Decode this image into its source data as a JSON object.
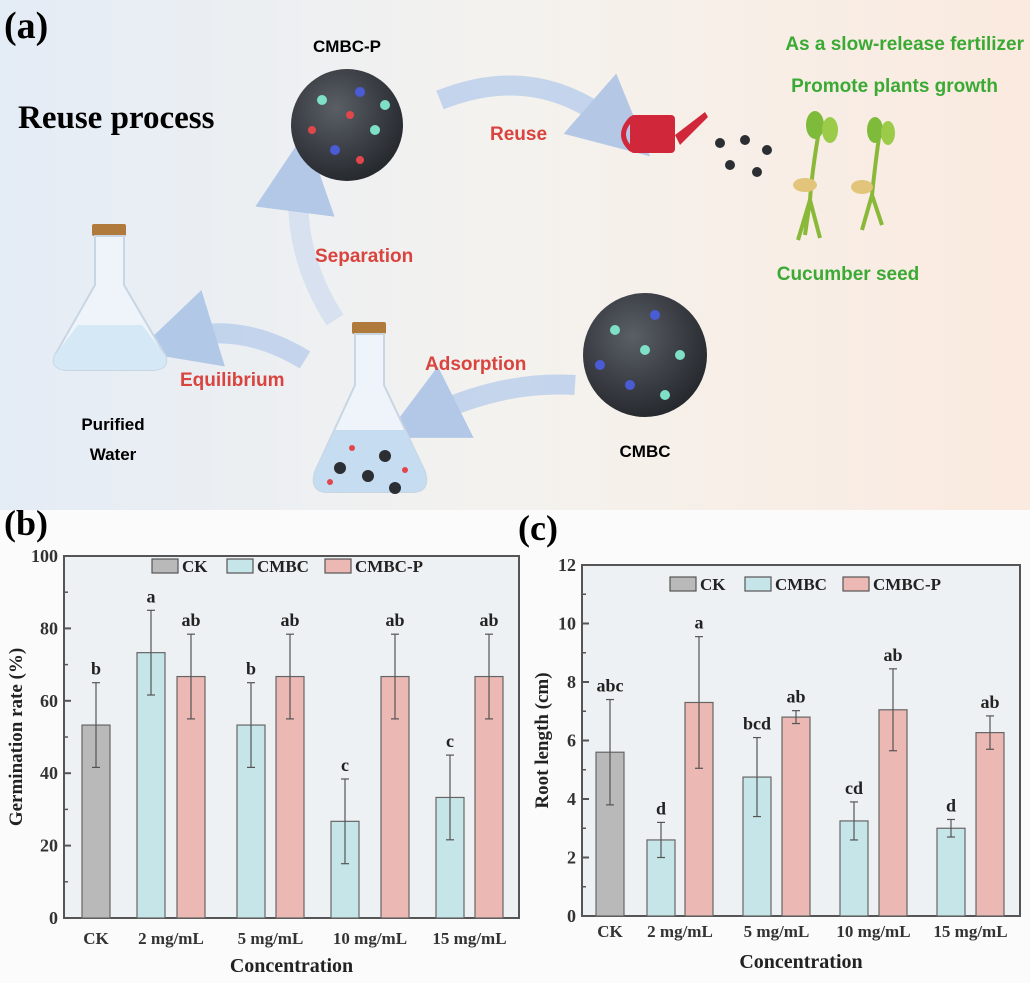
{
  "panel_a": {
    "label": "(a)",
    "title": "Reuse process",
    "cmbc_p_label": "CMBC-P",
    "cmbc_label": "CMBC",
    "reuse_label": "Reuse",
    "separation_label": "Separation",
    "adsorption_label": "Adsorption",
    "equilibrium_label": "Equilibrium",
    "purified_water_line1": "Purified",
    "purified_water_line2": "Water",
    "fertilizer_text": "As a slow-release fertilizer",
    "growth_text": "Promote plants growth",
    "seed_text": "Cucumber seed",
    "colors": {
      "process_text": "#d9443f",
      "benefit_text": "#3aaa35",
      "arrow": "#b9cde8",
      "watering_can": "#d0283a"
    }
  },
  "chart_data": [
    {
      "panel_label": "(b)",
      "type": "bar",
      "xlabel": "Concentration",
      "ylabel": "Germination rate (%)",
      "ylim": [
        0,
        100
      ],
      "yticks": [
        "0",
        "20",
        "40",
        "60",
        "80",
        "100"
      ],
      "categories": [
        "CK",
        "2 mg/mL",
        "5 mg/mL",
        "10 mg/mL",
        "15 mg/mL"
      ],
      "legend": [
        "CK",
        "CMBC",
        "CMBC-P"
      ],
      "legend_position": "top",
      "grid": false,
      "series": [
        {
          "name": "CK",
          "color": "#b9b9b9",
          "values": [
            53.3,
            null,
            null,
            null,
            null
          ],
          "errors": [
            11.7,
            null,
            null,
            null,
            null
          ],
          "letters": [
            "b",
            null,
            null,
            null,
            null
          ]
        },
        {
          "name": "CMBC",
          "color": "#c6e5e8",
          "values": [
            null,
            73.3,
            53.3,
            26.7,
            33.3
          ],
          "errors": [
            null,
            11.7,
            11.7,
            11.7,
            11.7
          ],
          "letters": [
            null,
            "a",
            "b",
            "c",
            "c"
          ]
        },
        {
          "name": "CMBC-P",
          "color": "#ecb8b3",
          "values": [
            null,
            66.7,
            66.7,
            66.7,
            66.7
          ],
          "errors": [
            null,
            11.7,
            11.7,
            11.7,
            11.7
          ],
          "letters": [
            null,
            "ab",
            "ab",
            "ab",
            "ab"
          ]
        }
      ]
    },
    {
      "panel_label": "(c)",
      "type": "bar",
      "xlabel": "Concentration",
      "ylabel": "Root length (cm)",
      "ylim": [
        0,
        12
      ],
      "yticks": [
        "0",
        "2",
        "4",
        "6",
        "8",
        "10",
        "12"
      ],
      "categories": [
        "CK",
        "2 mg/mL",
        "5 mg/mL",
        "10 mg/mL",
        "15 mg/mL"
      ],
      "legend": [
        "CK",
        "CMBC",
        "CMBC-P"
      ],
      "legend_position": "top",
      "grid": false,
      "series": [
        {
          "name": "CK",
          "color": "#b9b9b9",
          "values": [
            5.6,
            null,
            null,
            null,
            null
          ],
          "errors": [
            1.8,
            null,
            null,
            null,
            null
          ],
          "letters": [
            "abc",
            null,
            null,
            null,
            null
          ]
        },
        {
          "name": "CMBC",
          "color": "#c6e5e8",
          "values": [
            null,
            2.6,
            4.75,
            3.25,
            3.0
          ],
          "errors": [
            null,
            0.6,
            1.35,
            0.65,
            0.3
          ],
          "letters": [
            null,
            "d",
            "bcd",
            "cd",
            "d"
          ]
        },
        {
          "name": "CMBC-P",
          "color": "#ecb8b3",
          "values": [
            null,
            7.3,
            6.8,
            7.05,
            6.27
          ],
          "errors": [
            null,
            2.25,
            0.22,
            1.4,
            0.57
          ],
          "letters": [
            null,
            "a",
            "ab",
            "ab",
            "ab"
          ]
        }
      ]
    }
  ]
}
